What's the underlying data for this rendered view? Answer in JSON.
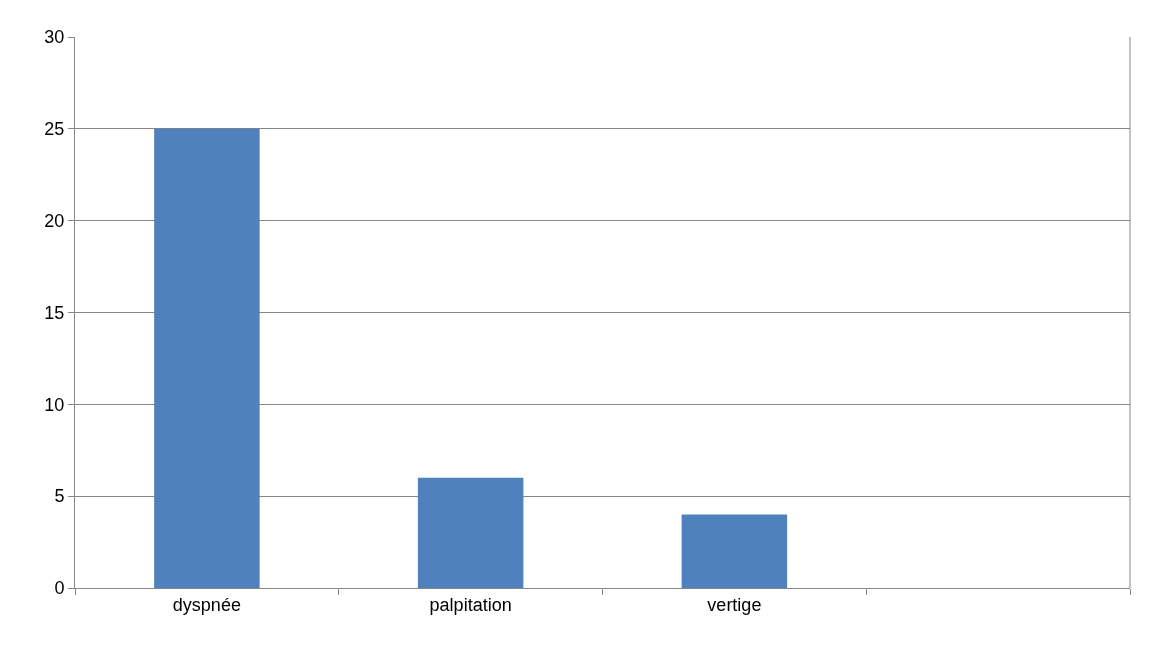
{
  "chart_data": {
    "type": "bar",
    "categories": [
      "dyspnée",
      "palpitation",
      "vertige",
      null
    ],
    "values": [
      25,
      6,
      4,
      null
    ],
    "color": "#4f81bd",
    "ylim": [
      0,
      30
    ],
    "yticks": [
      0,
      5,
      10,
      15,
      20,
      25,
      30
    ],
    "grid": "y"
  }
}
